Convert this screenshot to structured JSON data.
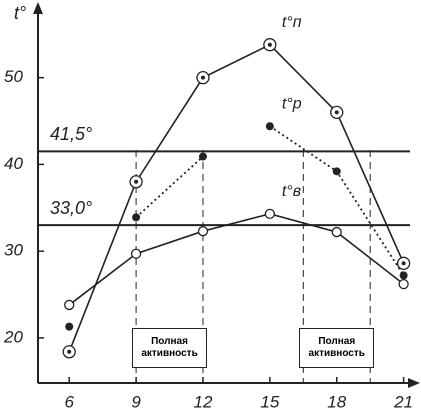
{
  "chart_data": {
    "type": "line",
    "y_label": "t°",
    "xlim": [
      4.6,
      21.6
    ],
    "ylim": [
      14.8,
      57.8
    ],
    "xticks": [
      6,
      9,
      12,
      15,
      18,
      21
    ],
    "yticks": [
      20,
      30,
      40,
      50
    ],
    "x": [
      6,
      9,
      12,
      15,
      18,
      21
    ],
    "series": [
      {
        "name": "t°п",
        "color": "#222222",
        "marker": "double-circle",
        "line": "solid",
        "values": [
          18.4,
          38,
          50,
          53.8,
          46,
          28.6
        ]
      },
      {
        "name": "t°р",
        "color": "#222222",
        "marker": "dot",
        "line": "dotted",
        "values": [
          21.3,
          33.9,
          40.9,
          44.4,
          39.2,
          27.2
        ]
      },
      {
        "name": "t°в",
        "color": "#222222",
        "marker": "circle",
        "line": "solid",
        "values": [
          23.8,
          29.7,
          32.3,
          34.3,
          32.2,
          26.2
        ]
      }
    ],
    "reference_lines": [
      {
        "value": 41.5,
        "label": "41,5°"
      },
      {
        "value": 33.0,
        "label": "33,0°"
      }
    ],
    "activity_periods": [
      {
        "from": 9,
        "to": 12,
        "label": "Полная активность"
      },
      {
        "from": 16.5,
        "to": 19.5,
        "label": "Полная активность"
      }
    ]
  }
}
